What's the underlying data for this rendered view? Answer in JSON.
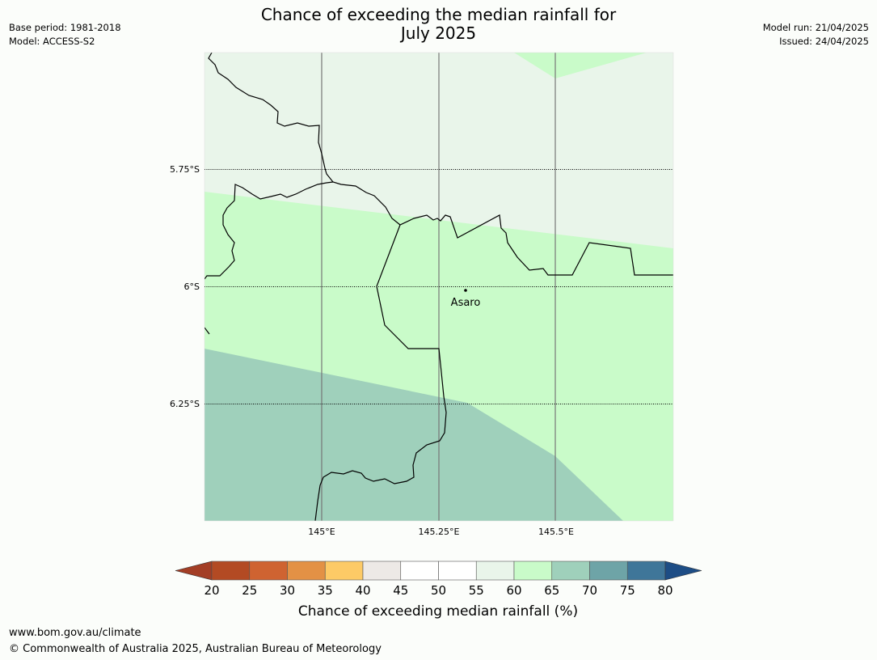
{
  "title": {
    "line1": "Chance of exceeding the median rainfall for",
    "line2": "July 2025"
  },
  "meta_left": {
    "base_period": "Base period: 1981-2018",
    "model": "Model: ACCESS-S2"
  },
  "meta_right": {
    "model_run": "Model run: 21/04/2025",
    "issued": "Issued: 24/04/2025"
  },
  "map": {
    "lat_labels": [
      "5.75°S",
      "6°S",
      "6.25°S"
    ],
    "lon_labels": [
      "145°E",
      "145.25°E",
      "145.5°E"
    ],
    "place": "Asaro",
    "colors": {
      "pct_55_60": "#e9f5ea",
      "pct_60_65": "#c9fbc9",
      "pct_65_70": "#9fd0bb"
    }
  },
  "colorbar": {
    "ticks": [
      "20",
      "25",
      "30",
      "35",
      "40",
      "45",
      "50",
      "55",
      "60",
      "65",
      "70",
      "75",
      "80"
    ],
    "label": "Chance of exceeding median rainfall (%)",
    "colors": [
      "#a33e25",
      "#b34a23",
      "#cf6331",
      "#e39145",
      "#fdca66",
      "#ede9e6",
      "#ffffff",
      "#ffffff",
      "#e9f5ea",
      "#c9fbc9",
      "#9fd0bb",
      "#6ea4a7",
      "#3f7699",
      "#1d4d85"
    ]
  },
  "footer": {
    "url": "www.bom.gov.au/climate",
    "copyright": "© Commonwealth of Australia 2025, Australian Bureau of Meteorology"
  }
}
